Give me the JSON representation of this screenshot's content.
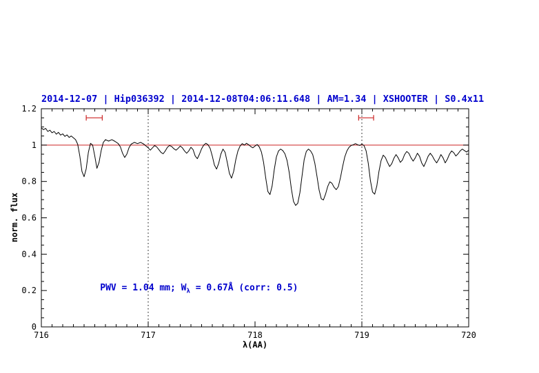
{
  "chart_data": {
    "type": "line",
    "title": "2014-12-07 | Hip036392 | 2014-12-08T04:06:11.648 | AM=1.34 | XSHOOTER | S0.4x11",
    "title_color": "#0000cd",
    "xlabel": "λ(AA)",
    "ylabel": "norm. flux",
    "xlim": [
      716,
      720
    ],
    "ylim": [
      0,
      1.2
    ],
    "x_ticks": [
      716,
      717,
      718,
      719,
      720
    ],
    "x_tick_labels": [
      "716",
      "717",
      "718",
      "719",
      "720"
    ],
    "x_minor_step": 0.1,
    "y_ticks": [
      0,
      0.2,
      0.4,
      0.6,
      0.8,
      1,
      1.2
    ],
    "y_tick_labels": [
      "0",
      "0.2",
      "0.4",
      "0.6",
      "0.8",
      "1",
      "1.2"
    ],
    "y_minor_step": 0.05,
    "grid": false,
    "legend": false,
    "reference_lines": {
      "horizontal": {
        "y": 1.0,
        "color": "#cc2222",
        "style": "solid"
      },
      "vertical": [
        {
          "x": 717,
          "color": "#000000",
          "style": "dotted"
        },
        {
          "x": 719,
          "color": "#000000",
          "style": "dotted"
        }
      ]
    },
    "range_markers": [
      {
        "x1": 716.42,
        "x2": 716.57,
        "y": 1.15,
        "color": "#cc2222"
      },
      {
        "x1": 718.97,
        "x2": 719.11,
        "y": 1.15,
        "color": "#cc2222"
      }
    ],
    "annotation": {
      "prefix": "PWV = 1.04 mm; W",
      "sub": "λ",
      "suffix": " = 0.67Å (corr: 0.5)",
      "color": "#0000cd",
      "x": 716.55,
      "y": 0.2
    },
    "series": [
      {
        "name": "normalized-spectrum",
        "color": "#000000",
        "points": [
          [
            716.0,
            1.095
          ],
          [
            716.02,
            1.085
          ],
          [
            716.04,
            1.092
          ],
          [
            716.06,
            1.075
          ],
          [
            716.08,
            1.082
          ],
          [
            716.1,
            1.068
          ],
          [
            716.12,
            1.075
          ],
          [
            716.14,
            1.06
          ],
          [
            716.16,
            1.07
          ],
          [
            716.18,
            1.055
          ],
          [
            716.2,
            1.062
          ],
          [
            716.22,
            1.048
          ],
          [
            716.24,
            1.056
          ],
          [
            716.26,
            1.042
          ],
          [
            716.28,
            1.05
          ],
          [
            716.3,
            1.04
          ],
          [
            716.32,
            1.03
          ],
          [
            716.34,
            1.005
          ],
          [
            716.36,
            0.94
          ],
          [
            716.38,
            0.855
          ],
          [
            716.4,
            0.826
          ],
          [
            716.42,
            0.87
          ],
          [
            716.44,
            0.96
          ],
          [
            716.46,
            1.01
          ],
          [
            716.48,
            1.0
          ],
          [
            716.5,
            0.94
          ],
          [
            716.52,
            0.872
          ],
          [
            716.54,
            0.905
          ],
          [
            716.56,
            0.97
          ],
          [
            716.58,
            1.015
          ],
          [
            716.6,
            1.03
          ],
          [
            716.63,
            1.022
          ],
          [
            716.66,
            1.03
          ],
          [
            716.69,
            1.02
          ],
          [
            716.72,
            1.008
          ],
          [
            716.74,
            0.99
          ],
          [
            716.76,
            0.955
          ],
          [
            716.78,
            0.932
          ],
          [
            716.8,
            0.95
          ],
          [
            716.82,
            0.985
          ],
          [
            716.84,
            1.005
          ],
          [
            716.87,
            1.015
          ],
          [
            716.9,
            1.008
          ],
          [
            716.93,
            1.015
          ],
          [
            716.96,
            1.005
          ],
          [
            716.98,
            0.995
          ],
          [
            717.0,
            0.985
          ],
          [
            717.02,
            0.972
          ],
          [
            717.04,
            0.985
          ],
          [
            717.06,
            0.998
          ],
          [
            717.08,
            0.99
          ],
          [
            717.1,
            0.975
          ],
          [
            717.12,
            0.96
          ],
          [
            717.14,
            0.952
          ],
          [
            717.16,
            0.968
          ],
          [
            717.18,
            0.988
          ],
          [
            717.2,
            0.998
          ],
          [
            717.22,
            0.992
          ],
          [
            717.24,
            0.98
          ],
          [
            717.26,
            0.972
          ],
          [
            717.28,
            0.982
          ],
          [
            717.3,
            0.995
          ],
          [
            717.32,
            0.985
          ],
          [
            717.34,
            0.968
          ],
          [
            717.36,
            0.955
          ],
          [
            717.38,
            0.968
          ],
          [
            717.4,
            0.988
          ],
          [
            717.42,
            0.975
          ],
          [
            717.44,
            0.94
          ],
          [
            717.46,
            0.925
          ],
          [
            717.48,
            0.95
          ],
          [
            717.5,
            0.98
          ],
          [
            717.52,
            1.0
          ],
          [
            717.54,
            1.01
          ],
          [
            717.56,
            1.002
          ],
          [
            717.58,
            0.982
          ],
          [
            717.6,
            0.94
          ],
          [
            717.62,
            0.89
          ],
          [
            717.64,
            0.868
          ],
          [
            717.66,
            0.9
          ],
          [
            717.68,
            0.95
          ],
          [
            717.7,
            0.978
          ],
          [
            717.72,
            0.96
          ],
          [
            717.74,
            0.905
          ],
          [
            717.76,
            0.845
          ],
          [
            717.78,
            0.818
          ],
          [
            717.8,
            0.855
          ],
          [
            717.82,
            0.92
          ],
          [
            717.84,
            0.968
          ],
          [
            717.86,
            0.995
          ],
          [
            717.88,
            1.008
          ],
          [
            717.9,
            1.0
          ],
          [
            717.92,
            1.01
          ],
          [
            717.94,
            1.002
          ],
          [
            717.96,
            0.992
          ],
          [
            717.98,
            0.985
          ],
          [
            718.0,
            0.995
          ],
          [
            718.02,
            1.003
          ],
          [
            718.04,
            0.99
          ],
          [
            718.06,
            0.962
          ],
          [
            718.08,
            0.905
          ],
          [
            718.1,
            0.82
          ],
          [
            718.12,
            0.745
          ],
          [
            718.14,
            0.728
          ],
          [
            718.16,
            0.775
          ],
          [
            718.18,
            0.865
          ],
          [
            718.2,
            0.935
          ],
          [
            718.22,
            0.968
          ],
          [
            718.24,
            0.978
          ],
          [
            718.26,
            0.97
          ],
          [
            718.28,
            0.952
          ],
          [
            718.3,
            0.915
          ],
          [
            718.32,
            0.85
          ],
          [
            718.34,
            0.76
          ],
          [
            718.36,
            0.69
          ],
          [
            718.38,
            0.668
          ],
          [
            718.4,
            0.68
          ],
          [
            718.42,
            0.738
          ],
          [
            718.44,
            0.83
          ],
          [
            718.46,
            0.92
          ],
          [
            718.48,
            0.965
          ],
          [
            718.5,
            0.978
          ],
          [
            718.52,
            0.968
          ],
          [
            718.54,
            0.948
          ],
          [
            718.56,
            0.9
          ],
          [
            718.58,
            0.828
          ],
          [
            718.6,
            0.752
          ],
          [
            718.62,
            0.705
          ],
          [
            718.64,
            0.698
          ],
          [
            718.66,
            0.73
          ],
          [
            718.68,
            0.772
          ],
          [
            718.7,
            0.798
          ],
          [
            718.72,
            0.79
          ],
          [
            718.74,
            0.768
          ],
          [
            718.76,
            0.755
          ],
          [
            718.78,
            0.772
          ],
          [
            718.8,
            0.822
          ],
          [
            718.82,
            0.882
          ],
          [
            718.84,
            0.935
          ],
          [
            718.86,
            0.968
          ],
          [
            718.88,
            0.988
          ],
          [
            718.9,
            0.998
          ],
          [
            718.92,
            1.002
          ],
          [
            718.94,
            1.008
          ],
          [
            718.96,
            1.002
          ],
          [
            718.98,
            0.998
          ],
          [
            719.0,
            1.005
          ],
          [
            719.02,
            0.998
          ],
          [
            719.04,
            0.968
          ],
          [
            719.06,
            0.9
          ],
          [
            719.08,
            0.805
          ],
          [
            719.1,
            0.742
          ],
          [
            719.12,
            0.73
          ],
          [
            719.14,
            0.775
          ],
          [
            719.16,
            0.855
          ],
          [
            719.18,
            0.915
          ],
          [
            719.2,
            0.945
          ],
          [
            719.22,
            0.932
          ],
          [
            719.24,
            0.905
          ],
          [
            719.26,
            0.882
          ],
          [
            719.28,
            0.898
          ],
          [
            719.3,
            0.928
          ],
          [
            719.32,
            0.948
          ],
          [
            719.34,
            0.93
          ],
          [
            719.36,
            0.905
          ],
          [
            719.38,
            0.918
          ],
          [
            719.4,
            0.948
          ],
          [
            719.42,
            0.965
          ],
          [
            719.44,
            0.955
          ],
          [
            719.46,
            0.93
          ],
          [
            719.48,
            0.912
          ],
          [
            719.5,
            0.93
          ],
          [
            719.52,
            0.955
          ],
          [
            719.54,
            0.938
          ],
          [
            719.56,
            0.902
          ],
          [
            719.58,
            0.882
          ],
          [
            719.6,
            0.908
          ],
          [
            719.62,
            0.938
          ],
          [
            719.64,
            0.955
          ],
          [
            719.66,
            0.94
          ],
          [
            719.68,
            0.918
          ],
          [
            719.7,
            0.902
          ],
          [
            719.72,
            0.922
          ],
          [
            719.74,
            0.948
          ],
          [
            719.76,
            0.93
          ],
          [
            719.78,
            0.902
          ],
          [
            719.8,
            0.922
          ],
          [
            719.82,
            0.95
          ],
          [
            719.84,
            0.968
          ],
          [
            719.86,
            0.958
          ],
          [
            719.88,
            0.94
          ],
          [
            719.9,
            0.952
          ],
          [
            719.92,
            0.968
          ],
          [
            719.94,
            0.978
          ],
          [
            719.96,
            0.97
          ],
          [
            719.98,
            0.962
          ],
          [
            720.0,
            0.972
          ]
        ]
      }
    ]
  }
}
